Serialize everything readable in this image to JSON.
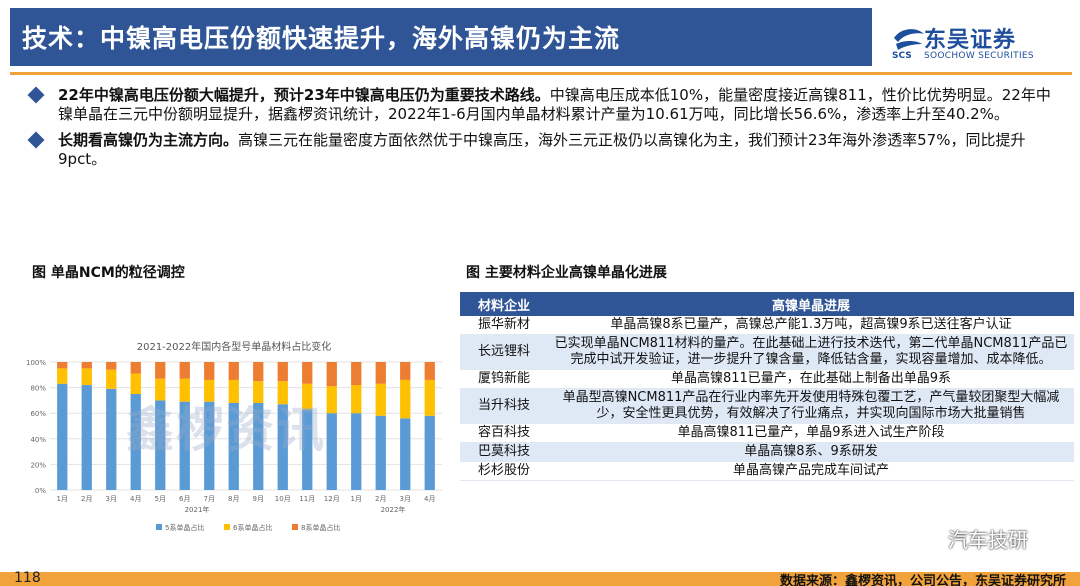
{
  "header": {
    "title": "技术：中镍高电压份额快速提升，海外高镍仍为主流",
    "logo_cn": "东吴证券",
    "logo_en": "SOOCHOW SECURITIES",
    "logo_mark": "SCS"
  },
  "bullets": [
    {
      "bold": "22年中镍高电压份额大幅提升，预计23年中镍高电压仍为重要技术路线。",
      "text": "中镍高电压成本低10%，能量密度接近高镍811，性价比优势明显。22年中镍单晶在三元中份额明显提升，据鑫椤资讯统计，2022年1-6月国内单晶材料累计产量为10.61万吨，同比增长56.6%，渗透率上升至40.2%。"
    },
    {
      "bold": "长期看高镍仍为主流方向。",
      "text": "高镍三元在能量密度方面依然优于中镍高压，海外三元正极仍以高镍化为主，我们预计23年海外渗透率57%，同比提升9pct。"
    }
  ],
  "captions": {
    "left": "图 单晶NCM的粒径调控",
    "right": "图 主要材料企业高镍单晶化进展"
  },
  "chart_data": {
    "type": "bar",
    "title": "2021-2022年国内各型号单晶材料占比变化",
    "categories": [
      "1月",
      "2月",
      "3月",
      "4月",
      "5月",
      "6月",
      "7月",
      "8月",
      "9月",
      "10月",
      "11月",
      "12月",
      "1月",
      "2月",
      "3月",
      "4月"
    ],
    "year_labels": [
      "2021年",
      "2022年"
    ],
    "yticks": [
      "0%",
      "20%",
      "40%",
      "60%",
      "80%",
      "100%"
    ],
    "ylim": [
      0,
      100
    ],
    "stacked": true,
    "series": [
      {
        "name": "5系单晶占比",
        "color": "#5b9bd5",
        "values": [
          83,
          82,
          79,
          75,
          70,
          69,
          69,
          68,
          68,
          67,
          63,
          60,
          60,
          58,
          56,
          58
        ]
      },
      {
        "name": "6系单晶占比",
        "color": "#ffc000",
        "values": [
          12,
          13,
          15,
          16,
          17,
          18,
          17,
          18,
          17,
          18,
          20,
          21,
          22,
          25,
          30,
          28
        ]
      },
      {
        "name": "8系单晶占比",
        "color": "#ed7d31",
        "values": [
          5,
          5,
          6,
          9,
          13,
          13,
          14,
          14,
          15,
          15,
          17,
          19,
          18,
          17,
          14,
          14
        ]
      }
    ],
    "watermark": "鑫椤资讯"
  },
  "table": {
    "headers": [
      "材料企业",
      "高镍单晶进展"
    ],
    "rows": [
      {
        "company": "振华新材",
        "progress": "单晶高镍8系已量产，高镍总产能1.3万吨，超高镍9系已送往客户认证"
      },
      {
        "company": "长远锂科",
        "progress": "已实现单晶NCM811材料的量产。在此基础上进行技术迭代，第二代单晶NCM811产品已完成中试开发验证，进一步提升了镍含量，降低钴含量，实现容量增加、成本降低。"
      },
      {
        "company": "厦钨新能",
        "progress": "单晶高镍811已量产，在此基础上制备出单晶9系"
      },
      {
        "company": "当升科技",
        "progress": "单晶型高镍NCM811产品在行业内率先开发使用特殊包覆工艺，产气量较团聚型大幅减少，安全性更具优势，有效解决了行业痛点，并实现向国际市场大批量销售"
      },
      {
        "company": "容百科技",
        "progress": "单晶高镍811已量产，单晶9系进入试生产阶段"
      },
      {
        "company": "巴莫科技",
        "progress": "单晶高镍8系、9系研发"
      },
      {
        "company": "杉杉股份",
        "progress": "单晶高镍产品完成车间试产"
      }
    ]
  },
  "footer": {
    "page_number": "118",
    "source": "数据来源：鑫椤资讯，公司公告，东吴证券研究所",
    "wechat_label": "汽车技研"
  },
  "colors": {
    "title_bar": "#2f5597",
    "accent": "#f2a23a",
    "table_alt_row": "#dfe9f6"
  }
}
